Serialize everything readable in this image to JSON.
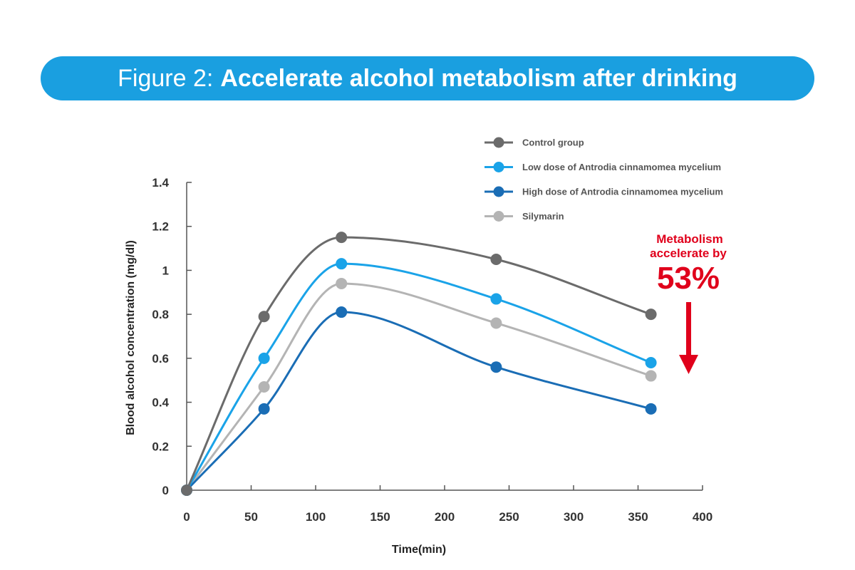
{
  "banner": {
    "prefix": "Figure 2:",
    "title": "Accelerate alcohol metabolism after drinking",
    "color": "#1a9fe0"
  },
  "annotation": {
    "line1": "Metabolism",
    "line2": "accelerate by",
    "value": "53%",
    "color": "#e0001b"
  },
  "chart_data": {
    "type": "line",
    "title": "Accelerate alcohol metabolism after drinking",
    "xlabel": "Time(min)",
    "ylabel": "Blood alcohol concentration (mg/dl)",
    "xlim": [
      0,
      400
    ],
    "ylim": [
      0,
      1.4
    ],
    "xticks": [
      0,
      50,
      100,
      150,
      200,
      250,
      300,
      350,
      400
    ],
    "yticks": [
      0,
      0.2,
      0.4,
      0.6,
      0.8,
      1,
      1.2,
      1.4
    ],
    "x": [
      0,
      60,
      120,
      240,
      360
    ],
    "grid": false,
    "legend_position": "top-right",
    "series": [
      {
        "name": "Control group",
        "color": "#6b6b6b",
        "values": [
          0,
          0.79,
          1.15,
          1.05,
          0.8
        ]
      },
      {
        "name": "Low dose of Antrodia cinnamomea mycelium",
        "color": "#1aa3e8",
        "values": [
          0,
          0.6,
          1.03,
          0.87,
          0.58
        ]
      },
      {
        "name": "High dose of Antrodia cinnamomea mycelium",
        "color": "#1a6db5",
        "values": [
          0,
          0.37,
          0.81,
          0.56,
          0.37
        ]
      },
      {
        "name": "Silymarin",
        "color": "#b4b4b4",
        "values": [
          0,
          0.47,
          0.94,
          0.76,
          0.52
        ]
      }
    ]
  }
}
